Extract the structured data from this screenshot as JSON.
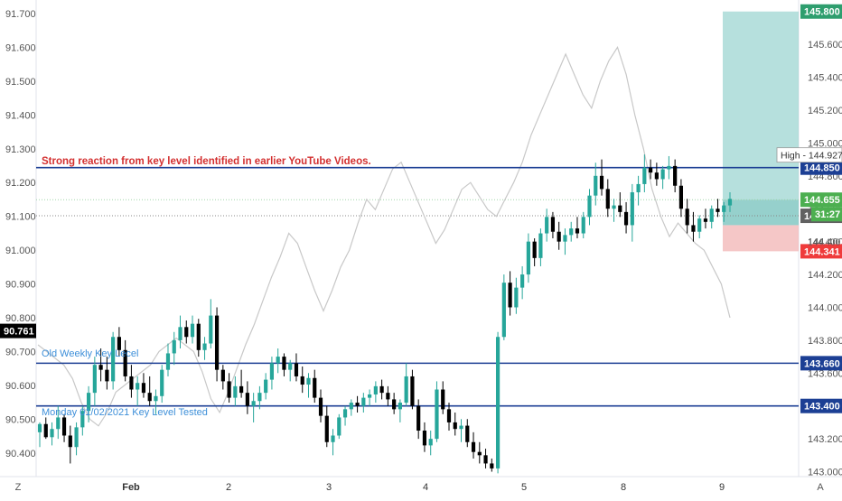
{
  "chart_data": {
    "type": "candlestick",
    "colors": {
      "up": "#26a69a",
      "down": "#000000",
      "overlay_line": "#c8c8c8",
      "key_line": "#1c3f94",
      "annotation_red": "#d32f2f",
      "annotation_blue": "#3d8fd9",
      "target_zone": "#9ed6d2",
      "stop_zone": "#f2b9b9",
      "entry_zone": "#7cc4bf",
      "badge_black": "#000000",
      "badge_navy": "#1c3f94",
      "badge_green": "#2e9e6e",
      "badge_green_light": "#4caf50",
      "badge_red": "#ef3b3b",
      "badge_grey": "#616161"
    },
    "left_axis": {
      "ylim": [
        90.33,
        91.74
      ],
      "ticks": [
        "91.700",
        "91.600",
        "91.500",
        "91.400",
        "91.300",
        "91.200",
        "91.100",
        "91.000",
        "90.900",
        "90.800",
        "90.700",
        "90.600",
        "90.500",
        "90.400"
      ],
      "current_value": "90.761",
      "corner_label": "Z"
    },
    "right_axis": {
      "ylim": [
        142.97,
        145.87
      ],
      "ticks": [
        "145.800",
        "145.600",
        "145.400",
        "145.200",
        "145.000",
        "144.800",
        "144.600",
        "144.400",
        "144.200",
        "144.000",
        "143.800",
        "143.600",
        "143.400",
        "143.200",
        "143.000"
      ],
      "corner_label": "A"
    },
    "x_axis": {
      "ticks": [
        "Feb",
        "2",
        "3",
        "4",
        "5",
        "8",
        "9"
      ]
    },
    "price_labels": {
      "target": "145.800",
      "high_text": "High - 144.927",
      "key_high": "144.850",
      "last": "144.655",
      "countdown": "31:27",
      "previous": "144.557",
      "stop": "144.341",
      "fragment": "144.400",
      "key_mid": "143.660",
      "key_low": "143.400"
    },
    "key_levels": [
      {
        "value": 144.85,
        "unit": "right"
      },
      {
        "value": 143.66,
        "unit": "right"
      },
      {
        "value": 143.4,
        "unit": "right"
      }
    ],
    "position": {
      "entry": 144.655,
      "target": 145.8,
      "stop": 144.341
    },
    "annotations": {
      "reaction": "Strong reaction from key level identified in earlier YouTube Videos.",
      "old_weekly": "Old Weekly Key Lecel",
      "monday": "Monday 01/02/2021 Key Level Tested"
    },
    "candles_note": "OHLC values in right-axis units",
    "candles": [
      [
        143.24,
        143.3,
        143.15,
        143.29
      ],
      [
        143.29,
        143.33,
        143.2,
        143.21
      ],
      [
        143.21,
        143.3,
        143.16,
        143.26
      ],
      [
        143.26,
        143.4,
        143.2,
        143.33
      ],
      [
        143.33,
        143.35,
        143.18,
        143.22
      ],
      [
        143.22,
        143.28,
        143.05,
        143.15
      ],
      [
        143.15,
        143.3,
        143.1,
        143.27
      ],
      [
        143.27,
        143.4,
        143.22,
        143.37
      ],
      [
        143.37,
        143.52,
        143.3,
        143.48
      ],
      [
        143.48,
        143.7,
        143.4,
        143.65
      ],
      [
        143.65,
        143.75,
        143.55,
        143.62
      ],
      [
        143.62,
        143.7,
        143.5,
        143.55
      ],
      [
        143.55,
        143.85,
        143.5,
        143.82
      ],
      [
        143.82,
        143.88,
        143.7,
        143.74
      ],
      [
        143.74,
        143.8,
        143.55,
        143.58
      ],
      [
        143.58,
        143.65,
        143.45,
        143.5
      ],
      [
        143.5,
        143.58,
        143.4,
        143.54
      ],
      [
        143.54,
        143.6,
        143.45,
        143.48
      ],
      [
        143.48,
        143.58,
        143.4,
        143.43
      ],
      [
        143.43,
        143.5,
        143.35,
        143.46
      ],
      [
        143.46,
        143.65,
        143.42,
        143.62
      ],
      [
        143.62,
        143.78,
        143.58,
        143.72
      ],
      [
        143.72,
        143.85,
        143.65,
        143.8
      ],
      [
        143.8,
        143.95,
        143.75,
        143.88
      ],
      [
        143.88,
        143.92,
        143.78,
        143.82
      ],
      [
        143.82,
        143.95,
        143.78,
        143.9
      ],
      [
        143.9,
        143.93,
        143.7,
        143.74
      ],
      [
        143.74,
        143.82,
        143.68,
        143.78
      ],
      [
        143.78,
        144.05,
        143.75,
        143.95
      ],
      [
        143.95,
        144.0,
        143.55,
        143.62
      ],
      [
        143.62,
        143.65,
        143.5,
        143.55
      ],
      [
        143.55,
        143.6,
        143.42,
        143.45
      ],
      [
        143.45,
        143.58,
        143.4,
        143.52
      ],
      [
        143.52,
        143.62,
        143.45,
        143.48
      ],
      [
        143.48,
        143.55,
        143.35,
        143.4
      ],
      [
        143.4,
        143.48,
        143.3,
        143.43
      ],
      [
        143.43,
        143.52,
        143.38,
        143.48
      ],
      [
        143.48,
        143.6,
        143.44,
        143.56
      ],
      [
        143.56,
        143.7,
        143.5,
        143.66
      ],
      [
        143.66,
        143.75,
        143.6,
        143.7
      ],
      [
        143.7,
        143.72,
        143.58,
        143.62
      ],
      [
        143.62,
        143.68,
        143.55,
        143.66
      ],
      [
        143.66,
        143.72,
        143.55,
        143.58
      ],
      [
        143.58,
        143.64,
        143.48,
        143.53
      ],
      [
        143.53,
        143.6,
        143.45,
        143.57
      ],
      [
        143.57,
        143.62,
        143.42,
        143.45
      ],
      [
        143.45,
        143.5,
        143.3,
        143.34
      ],
      [
        143.34,
        143.4,
        143.15,
        143.18
      ],
      [
        143.18,
        143.26,
        143.1,
        143.22
      ],
      [
        143.22,
        143.35,
        143.2,
        143.33
      ],
      [
        143.33,
        143.4,
        143.28,
        143.38
      ],
      [
        143.38,
        143.44,
        143.34,
        143.42
      ],
      [
        143.42,
        143.46,
        143.36,
        143.4
      ],
      [
        143.4,
        143.48,
        143.36,
        143.45
      ],
      [
        143.45,
        143.5,
        143.4,
        143.47
      ],
      [
        143.47,
        143.55,
        143.42,
        143.52
      ],
      [
        143.52,
        143.56,
        143.44,
        143.48
      ],
      [
        143.48,
        143.52,
        143.4,
        143.44
      ],
      [
        143.44,
        143.48,
        143.35,
        143.38
      ],
      [
        143.38,
        143.44,
        143.3,
        143.42
      ],
      [
        143.42,
        143.66,
        143.4,
        143.58
      ],
      [
        143.58,
        143.62,
        143.38,
        143.4
      ],
      [
        143.4,
        143.44,
        143.2,
        143.25
      ],
      [
        143.25,
        143.3,
        143.12,
        143.16
      ],
      [
        143.16,
        143.25,
        143.1,
        143.2
      ],
      [
        143.2,
        143.55,
        143.18,
        143.5
      ],
      [
        143.5,
        143.55,
        143.35,
        143.38
      ],
      [
        143.38,
        143.42,
        143.25,
        143.3
      ],
      [
        143.3,
        143.36,
        143.22,
        143.26
      ],
      [
        143.26,
        143.32,
        143.18,
        143.28
      ],
      [
        143.28,
        143.32,
        143.15,
        143.18
      ],
      [
        143.18,
        143.24,
        143.08,
        143.12
      ],
      [
        143.12,
        143.18,
        143.05,
        143.1
      ],
      [
        143.1,
        143.14,
        143.02,
        143.05
      ],
      [
        143.05,
        143.08,
        143.0,
        143.02
      ],
      [
        143.02,
        143.85,
        142.99,
        143.82
      ],
      [
        143.82,
        144.2,
        143.8,
        144.15
      ],
      [
        144.15,
        144.22,
        143.95,
        144.0
      ],
      [
        144.0,
        144.18,
        143.96,
        144.12
      ],
      [
        144.12,
        144.25,
        144.05,
        144.2
      ],
      [
        144.2,
        144.45,
        144.15,
        144.4
      ],
      [
        144.4,
        144.42,
        144.25,
        144.3
      ],
      [
        144.3,
        144.48,
        144.25,
        144.45
      ],
      [
        144.45,
        144.6,
        144.4,
        144.55
      ],
      [
        144.55,
        144.58,
        144.42,
        144.46
      ],
      [
        144.46,
        144.52,
        144.35,
        144.4
      ],
      [
        144.4,
        144.48,
        144.32,
        144.44
      ],
      [
        144.44,
        144.52,
        144.4,
        144.48
      ],
      [
        144.48,
        144.55,
        144.42,
        144.45
      ],
      [
        144.45,
        144.58,
        144.42,
        144.55
      ],
      [
        144.55,
        144.72,
        144.5,
        144.68
      ],
      [
        144.68,
        144.88,
        144.62,
        144.8
      ],
      [
        144.8,
        144.9,
        144.68,
        144.72
      ],
      [
        144.72,
        144.78,
        144.55,
        144.6
      ],
      [
        144.6,
        144.66,
        144.52,
        144.62
      ],
      [
        144.62,
        144.7,
        144.55,
        144.58
      ],
      [
        144.58,
        144.64,
        144.45,
        144.5
      ],
      [
        144.5,
        144.75,
        144.4,
        144.7
      ],
      [
        144.7,
        144.8,
        144.62,
        144.75
      ],
      [
        144.75,
        144.93,
        144.7,
        144.85
      ],
      [
        144.85,
        144.9,
        144.78,
        144.82
      ],
      [
        144.82,
        144.88,
        144.74,
        144.78
      ],
      [
        144.78,
        144.86,
        144.72,
        144.84
      ],
      [
        144.84,
        144.92,
        144.78,
        144.86
      ],
      [
        144.86,
        144.9,
        144.7,
        144.74
      ],
      [
        144.74,
        144.78,
        144.55,
        144.6
      ],
      [
        144.6,
        144.66,
        144.45,
        144.5
      ],
      [
        144.5,
        144.58,
        144.4,
        144.46
      ],
      [
        144.46,
        144.56,
        144.42,
        144.54
      ],
      [
        144.54,
        144.6,
        144.48,
        144.52
      ],
      [
        144.52,
        144.62,
        144.48,
        144.6
      ],
      [
        144.6,
        144.66,
        144.55,
        144.58
      ],
      [
        144.58,
        144.64,
        144.52,
        144.62
      ],
      [
        144.62,
        144.7,
        144.58,
        144.66
      ]
    ],
    "overlay_note": "Dollar index line in left-axis units",
    "overlay": [
      90.72,
      90.7,
      90.68,
      90.66,
      90.62,
      90.55,
      90.5,
      90.48,
      90.52,
      90.58,
      90.6,
      90.62,
      90.64,
      90.66,
      90.7,
      90.72,
      90.74,
      90.72,
      90.7,
      90.64,
      90.56,
      90.52,
      90.58,
      90.65,
      90.72,
      90.78,
      90.85,
      90.92,
      90.98,
      91.05,
      91.02,
      90.95,
      90.88,
      90.82,
      90.88,
      90.95,
      91.0,
      91.08,
      91.15,
      91.12,
      91.18,
      91.24,
      91.26,
      91.2,
      91.14,
      91.08,
      91.02,
      91.06,
      91.12,
      91.18,
      91.2,
      91.16,
      91.12,
      91.1,
      91.15,
      91.2,
      91.26,
      91.34,
      91.4,
      91.46,
      91.52,
      91.58,
      91.52,
      91.46,
      91.42,
      91.5,
      91.56,
      91.6,
      91.52,
      91.4,
      91.3,
      91.18,
      91.1,
      91.04,
      91.08,
      91.05,
      91.02,
      91.0,
      90.95,
      90.9,
      90.8
    ]
  }
}
